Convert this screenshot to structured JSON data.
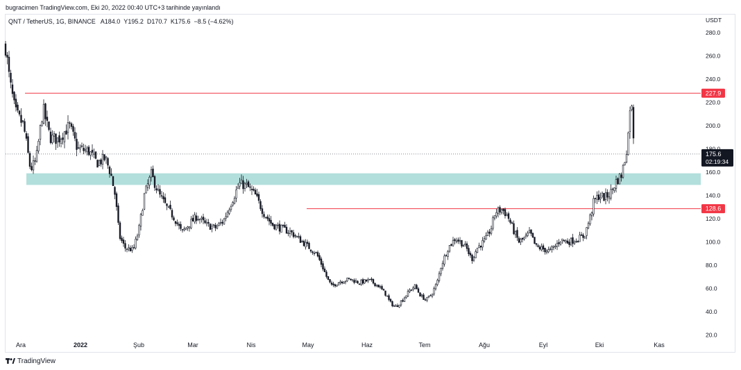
{
  "header": {
    "published": "bugracimen TradingView.com, Eki 20, 2022 00:40 UTC+3 tarihinde yayınlandı"
  },
  "legend": {
    "symbol": "QNT / TetherUS, 1G, BINANCE",
    "open_label": "A",
    "open": "184.0",
    "high_label": "Y",
    "high": "195.2",
    "low_label": "D",
    "low": "170.7",
    "close_label": "K",
    "close": "175.6",
    "change": "−8.5 (−4.62%)"
  },
  "footer": {
    "brand": "TradingView",
    "logo_icon": "tradingview-logo-icon"
  },
  "colors": {
    "candle": "#131722",
    "support_zone": "#b2dfdb",
    "level_line": "#f23645",
    "price_tag": "#131722"
  },
  "chart_data": {
    "type": "candlestick",
    "currency": "USDT",
    "ylim": [
      20,
      290
    ],
    "y_ticks": [
      "280.0",
      "260.0",
      "240.0",
      "220.0",
      "200.0",
      "180.0",
      "160.0",
      "140.0",
      "120.0",
      "100.0",
      "80.0",
      "60.0",
      "40.0",
      "20.0"
    ],
    "x_ticks": [
      "Ara",
      "2022",
      "Şub",
      "Mar",
      "Nis",
      "May",
      "Haz",
      "Tem",
      "Ağu",
      "Eyl",
      "Eki",
      "Kas"
    ],
    "horizontal_levels": [
      {
        "value": 227.9,
        "label": "227.9"
      },
      {
        "value": 128.6,
        "label": "128.6"
      }
    ],
    "zone": {
      "low": 149,
      "high": 159
    },
    "last_price": {
      "value": 175.6,
      "label": "175.6",
      "countdown": "02:19:34"
    },
    "approx_close_path": [
      {
        "date": "Ara",
        "close": 230
      },
      {
        "date": "2022",
        "close": 185
      },
      {
        "date": "Şub",
        "close": 95
      },
      {
        "date": "Şub",
        "close": 150
      },
      {
        "date": "Mar",
        "close": 115
      },
      {
        "date": "Nis",
        "close": 150
      },
      {
        "date": "May",
        "close": 100
      },
      {
        "date": "Haz",
        "close": 65
      },
      {
        "date": "Haz",
        "close": 43
      },
      {
        "date": "Tem",
        "close": 55
      },
      {
        "date": "Ağu",
        "close": 128
      },
      {
        "date": "Eyl",
        "close": 95
      },
      {
        "date": "Eki",
        "close": 140
      },
      {
        "date": "Eki",
        "close": 228
      },
      {
        "date": "Eki",
        "close": 175.6
      }
    ]
  }
}
